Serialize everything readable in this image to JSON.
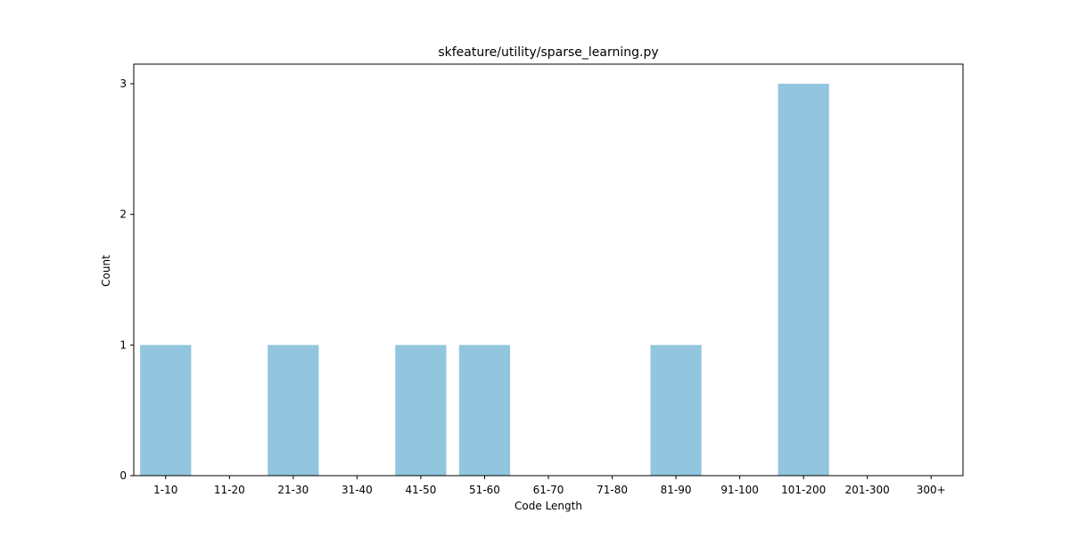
{
  "chart_data": {
    "type": "bar",
    "title": "skfeature/utility/sparse_learning.py",
    "xlabel": "Code Length",
    "ylabel": "Count",
    "categories": [
      "1-10",
      "11-20",
      "21-30",
      "31-40",
      "41-50",
      "51-60",
      "61-70",
      "71-80",
      "81-90",
      "91-100",
      "101-200",
      "201-300",
      "300+"
    ],
    "values": [
      1,
      0,
      1,
      0,
      1,
      1,
      0,
      0,
      1,
      0,
      3,
      0,
      0
    ],
    "yticks": [
      "0",
      "1",
      "2",
      "3"
    ],
    "ylim": [
      0,
      3.15
    ],
    "bar_color": "#92c5de",
    "grid": false,
    "legend": "none"
  }
}
